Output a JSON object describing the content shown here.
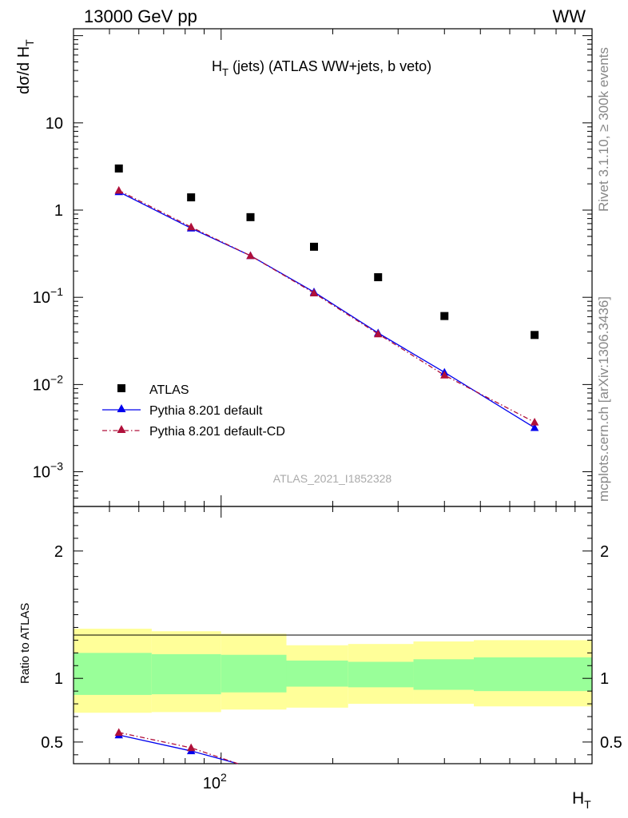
{
  "header": {
    "left": "13000 GeV pp",
    "right": "WW"
  },
  "side_text": {
    "top": "Rivet 3.1.10, ≥ 300k events",
    "bottom": "mcplots.cern.ch [arXiv:1306.3436]"
  },
  "analysis_id": "ATLAS_2021_I1852328",
  "chart_data": [
    {
      "type": "scatter",
      "panel": "main",
      "title": {
        "main": "H",
        "sub": "T",
        "rest": " (jets) (ATLAS WW+jets, b veto)"
      },
      "ylabel": {
        "main": "dσ/d H",
        "sub": "T"
      },
      "y_scale": "log",
      "ylim": [
        0.0004,
        120
      ],
      "y_ticks": [
        {
          "value": 0.001,
          "base": "10",
          "exp": "−3"
        },
        {
          "value": 0.01,
          "base": "10",
          "exp": "−2"
        },
        {
          "value": 0.1,
          "base": "10",
          "exp": "−1"
        },
        {
          "value": 1,
          "label": "1"
        },
        {
          "value": 10,
          "label": "10"
        }
      ],
      "x": [
        53,
        83,
        120,
        178,
        265,
        400,
        700
      ],
      "x_edges": [
        40,
        65,
        100,
        150,
        220,
        330,
        480,
        1000
      ],
      "series": [
        {
          "name": "ATLAS",
          "color": "#000000",
          "marker": "square",
          "values": [
            3.0,
            1.4,
            0.83,
            0.38,
            0.17,
            0.061,
            0.037
          ]
        },
        {
          "name": "Pythia 8.201 default",
          "color": "#0000ee",
          "marker": "triangle",
          "line": "solid",
          "values": [
            1.62,
            0.62,
            0.3,
            0.115,
            0.039,
            0.0138,
            0.0032
          ]
        },
        {
          "name": "Pythia 8.201 default-CD",
          "color": "#b0103a",
          "marker": "triangle",
          "line": "dashdot",
          "values": [
            1.68,
            0.64,
            0.3,
            0.112,
            0.038,
            0.0128,
            0.0037
          ]
        }
      ],
      "legend_position": "lower-left",
      "grid": false
    },
    {
      "type": "line",
      "panel": "ratio",
      "ylabel": "Ratio to ATLAS",
      "ylim": [
        0.33,
        2.35
      ],
      "y_ticks": [
        0.5,
        1,
        2
      ],
      "xlabel": {
        "main": "H",
        "sub": "T"
      },
      "x_scale": "log",
      "xlim": [
        40,
        1000
      ],
      "x_ticks": [
        {
          "value": 100,
          "base": "10",
          "exp": "2"
        }
      ],
      "x_edges": [
        40,
        65,
        100,
        150,
        220,
        330,
        480,
        1000
      ],
      "band_outer": {
        "color": "#ffff99",
        "low": [
          0.73,
          0.735,
          0.755,
          0.77,
          0.8,
          0.8,
          0.78
        ],
        "high": [
          1.39,
          1.37,
          1.35,
          1.26,
          1.27,
          1.29,
          1.3
        ]
      },
      "band_inner": {
        "color": "#99ff99",
        "low": [
          0.87,
          0.875,
          0.89,
          0.935,
          0.93,
          0.91,
          0.9
        ],
        "high": [
          1.2,
          1.19,
          1.185,
          1.14,
          1.13,
          1.15,
          1.165
        ]
      },
      "series": [
        {
          "name": "Pythia 8.201 default",
          "color": "#0000ee",
          "x": [
            53,
            83,
            111
          ],
          "values": [
            0.555,
            0.43,
            0.33
          ]
        },
        {
          "name": "Pythia 8.201 default-CD",
          "color": "#b0103a",
          "x": [
            53,
            83,
            111
          ],
          "values": [
            0.575,
            0.455,
            0.33
          ]
        }
      ]
    }
  ]
}
